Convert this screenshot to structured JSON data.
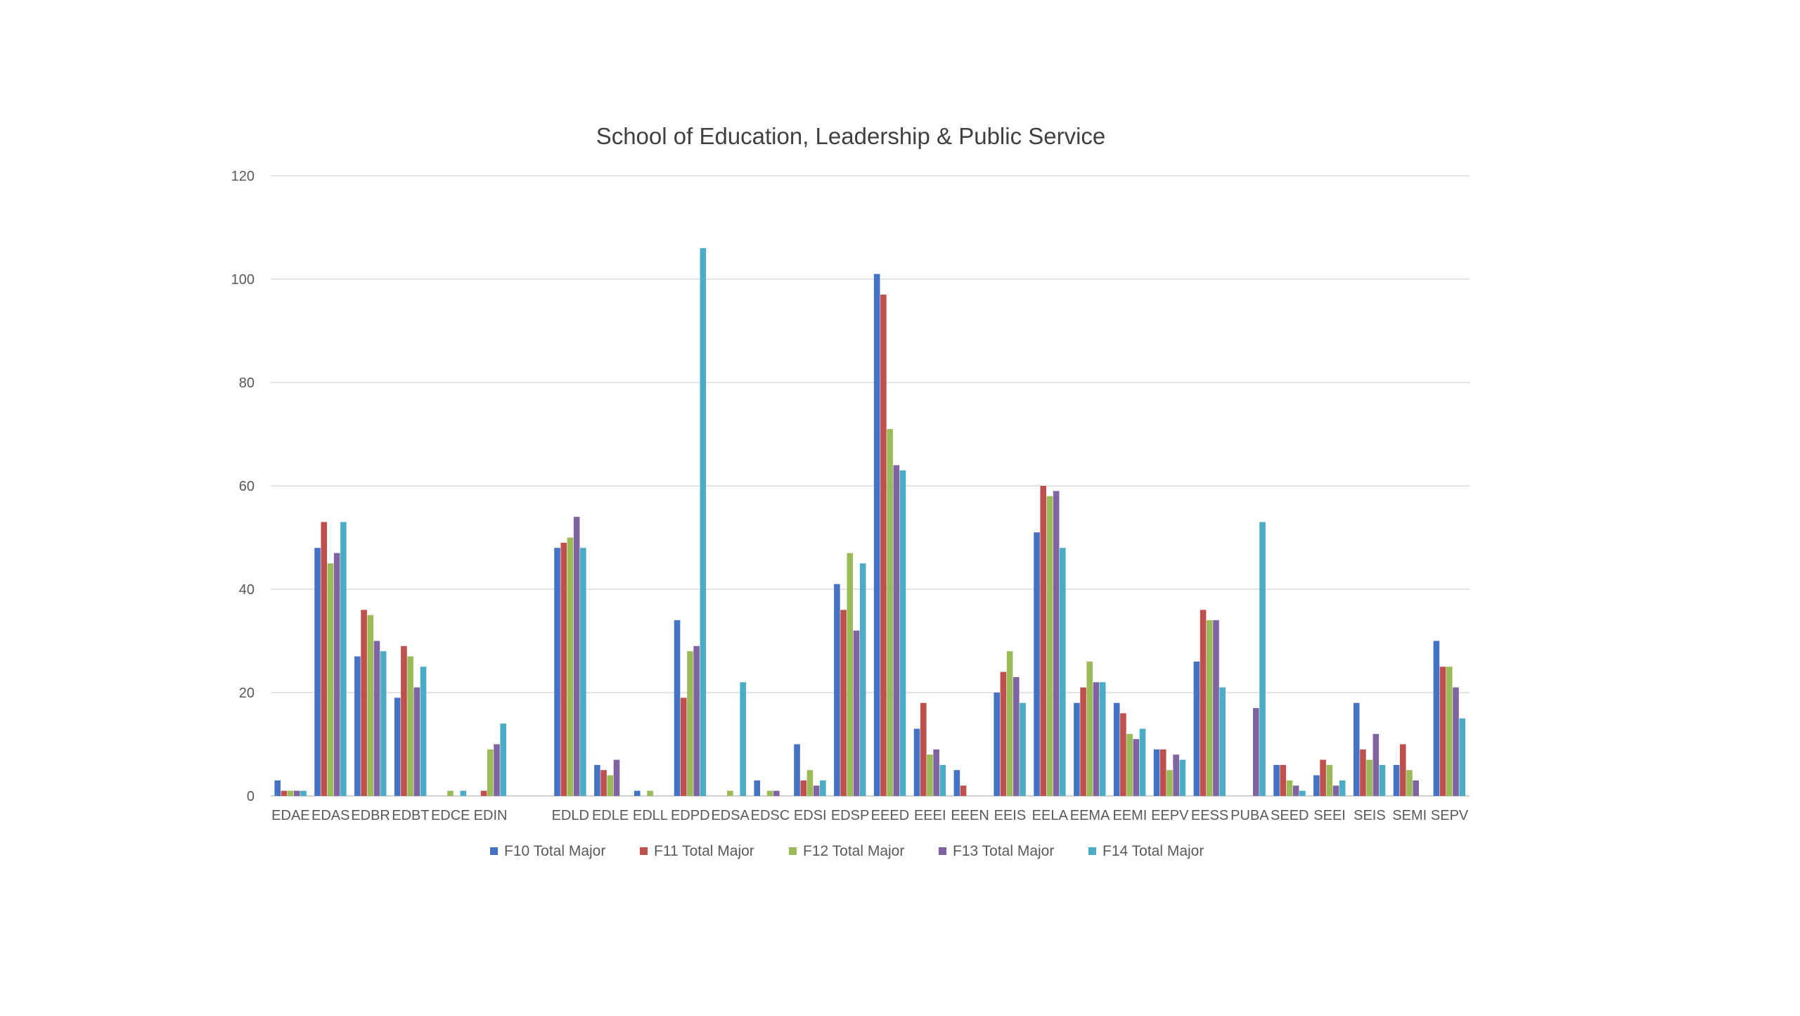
{
  "chart_data": {
    "type": "bar",
    "title": "School of Education, Leadership & Public Service",
    "xlabel": "",
    "ylabel": "",
    "ylim": [
      0,
      120
    ],
    "yticks": [
      0,
      20,
      40,
      60,
      80,
      100,
      120
    ],
    "grid": true,
    "legend_position": "bottom",
    "categories": [
      "EDAE",
      "EDAS",
      "EDBR",
      "EDBT",
      "EDCE",
      "EDIN",
      "",
      "EDLD",
      "EDLE",
      "EDLL",
      "EDPD",
      "EDSA",
      "EDSC",
      "EDSI",
      "EDSP",
      "EEED",
      "EEEI",
      "EEEN",
      "EEIS",
      "EELA",
      "EEMA",
      "EEMI",
      "EEPV",
      "EESS",
      "PUBA",
      "SEED",
      "SEEI",
      "SEIS",
      "SEMI",
      "SEPV"
    ],
    "series": [
      {
        "name": "F10 Total Major",
        "color": "#4472C4",
        "values": [
          3,
          48,
          27,
          19,
          0,
          0,
          null,
          48,
          6,
          1,
          34,
          0,
          3,
          10,
          41,
          101,
          13,
          5,
          20,
          51,
          18,
          18,
          9,
          26,
          0,
          6,
          4,
          18,
          6,
          30
        ]
      },
      {
        "name": "F11 Total Major",
        "color": "#C0504D",
        "values": [
          1,
          53,
          36,
          29,
          0,
          1,
          null,
          49,
          5,
          0,
          19,
          0,
          0,
          3,
          36,
          97,
          18,
          2,
          24,
          60,
          21,
          16,
          9,
          36,
          0,
          6,
          7,
          9,
          10,
          25
        ]
      },
      {
        "name": "F12 Total Major",
        "color": "#9BBB59",
        "values": [
          1,
          45,
          35,
          27,
          1,
          9,
          null,
          50,
          4,
          1,
          28,
          1,
          1,
          5,
          47,
          71,
          8,
          0,
          28,
          58,
          26,
          12,
          5,
          34,
          0,
          3,
          6,
          7,
          5,
          25
        ]
      },
      {
        "name": "F13 Total Major",
        "color": "#8064A2",
        "values": [
          1,
          47,
          30,
          21,
          0,
          10,
          null,
          54,
          7,
          0,
          29,
          0,
          1,
          2,
          32,
          64,
          9,
          0,
          23,
          59,
          22,
          11,
          8,
          34,
          17,
          2,
          2,
          12,
          3,
          21
        ]
      },
      {
        "name": "F14 Total Major",
        "color": "#4BACC6",
        "values": [
          1,
          53,
          28,
          25,
          1,
          14,
          null,
          48,
          0,
          0,
          106,
          22,
          0,
          3,
          45,
          63,
          6,
          0,
          18,
          48,
          22,
          13,
          7,
          21,
          53,
          1,
          3,
          6,
          0,
          15
        ]
      }
    ]
  }
}
